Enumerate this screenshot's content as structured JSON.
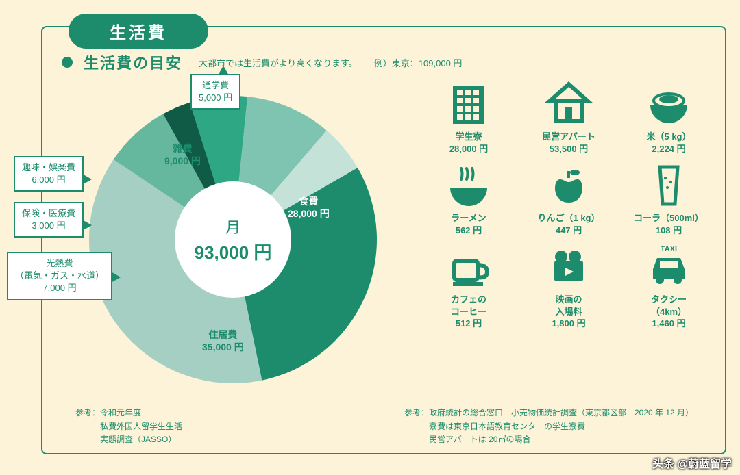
{
  "colors": {
    "bg": "#fcf3d8",
    "primary": "#1d8c6c",
    "white": "#ffffff"
  },
  "header": {
    "title": "生活費",
    "subtitle": "生活費の目安",
    "note_a": "大都市では生活費がより高くなります。",
    "note_b": "例）東京：109,000 円"
  },
  "pie": {
    "type": "pie",
    "center_label": "月",
    "center_amount": "93,000 円",
    "slices": [
      {
        "key": "food",
        "label": "食費",
        "amount": "28,000 円",
        "value": 28000,
        "color": "#1d8c6c"
      },
      {
        "key": "housing",
        "label": "住居費",
        "amount": "35,000 円",
        "value": 35000,
        "color": "#a5cfc3"
      },
      {
        "key": "utilities",
        "label": "光熱費\n（電気・ガス・水道）",
        "amount": "7,000 円",
        "value": 7000,
        "color": "#65b79d"
      },
      {
        "key": "medical",
        "label": "保険・医療費",
        "amount": "3,000 円",
        "value": 3000,
        "color": "#0f5b46"
      },
      {
        "key": "hobby",
        "label": "趣味・娯楽費",
        "amount": "6,000 円",
        "value": 6000,
        "color": "#2ea884"
      },
      {
        "key": "misc",
        "label": "雑費",
        "amount": "9,000 円",
        "value": 9000,
        "color": "#7fc4b0"
      },
      {
        "key": "commute",
        "label": "通学費",
        "amount": "5,000 円",
        "value": 5000,
        "color": "#c4e2d8"
      }
    ],
    "start_angle_deg": -30
  },
  "callouts": {
    "commute": {
      "line1": "通学費",
      "line2": "5,000 円"
    },
    "hobby": {
      "line1": "趣味・娯楽費",
      "line2": "6,000 円"
    },
    "medical": {
      "line1": "保険・医療費",
      "line2": "3,000 円"
    },
    "utilities": {
      "line1": "光熱費",
      "line2": "（電気・ガス・水道）",
      "line3": "7,000 円"
    }
  },
  "inslice": {
    "food": {
      "line1": "食費",
      "line2": "28,000 円",
      "color": "#ffffff"
    },
    "housing": {
      "line1": "住居費",
      "line2": "35,000 円",
      "color": "#1d8c6c"
    },
    "misc": {
      "line1": "雑費",
      "line2": "9,000 円",
      "color": "#1d8c6c"
    }
  },
  "items": [
    {
      "name": "学生寮",
      "price": "28,000 円",
      "icon": "building"
    },
    {
      "name": "民営アパート",
      "price": "53,500 円",
      "icon": "house"
    },
    {
      "name": "米（5 kg）",
      "price": "2,224 円",
      "icon": "rice"
    },
    {
      "name": "ラーメン",
      "price": "562 円",
      "icon": "ramen"
    },
    {
      "name": "りんご（1 kg）",
      "price": "447 円",
      "icon": "apple"
    },
    {
      "name": "コーラ（500ml）",
      "price": "108 円",
      "icon": "glass"
    },
    {
      "name": "カフェの\nコーヒー",
      "price": "512 円",
      "icon": "coffee"
    },
    {
      "name": "映画の\n入場料",
      "price": "1,800 円",
      "icon": "movie"
    },
    {
      "name": "タクシー\n（4km）",
      "price": "1,460 円",
      "icon": "taxi",
      "badge": "TAXI"
    }
  ],
  "refs": {
    "left": "参考：令和元年度\n　　　私費外国人留学生生活\n　　　実態調査（JASSO）",
    "right": "参考：政府統計の総合窓口　小売物価統計調査（東京都区部　2020 年 12 月）\n　　　寮費は東京日本語教育センターの学生寮費\n　　　民営アパートは 20㎡の場合"
  },
  "watermark": "头条 @蔚蓝留学"
}
